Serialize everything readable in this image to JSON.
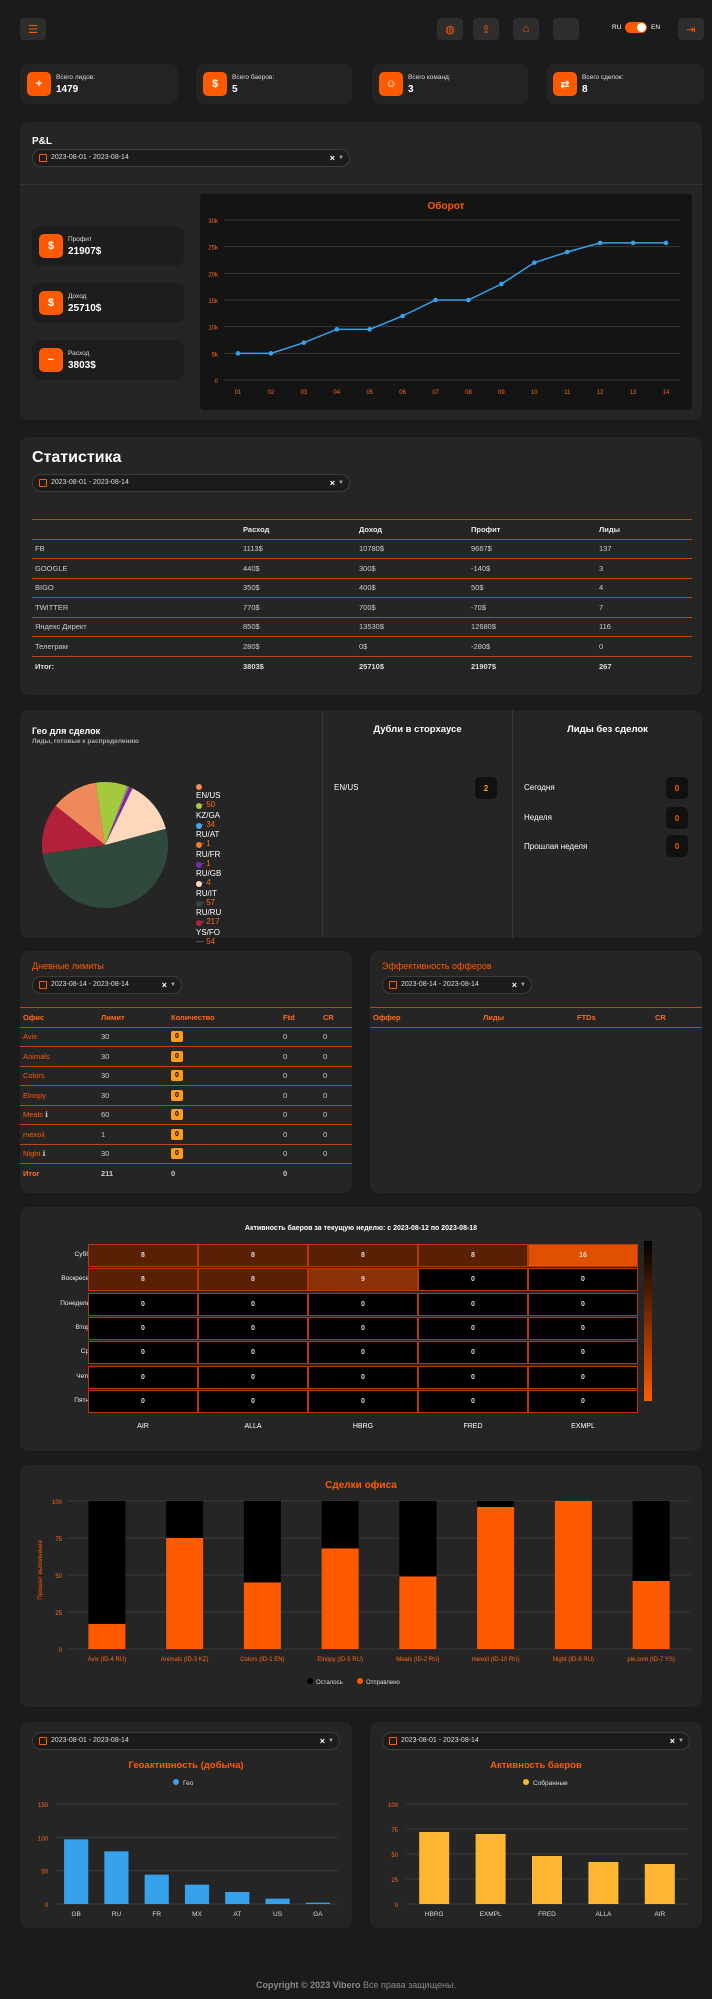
{
  "header": {
    "lang_ru": "RU",
    "lang_en": "EN"
  },
  "stats": [
    {
      "label": "Всего лидов:",
      "value": "1479"
    },
    {
      "label": "Всего баеров:",
      "value": "5"
    },
    {
      "label": "Всего команд:",
      "value": "3"
    },
    {
      "label": "Всего сделок:",
      "value": "8"
    }
  ],
  "pnl": {
    "title": "P&L",
    "date": "2023-08-01 - 2023-08-14",
    "cards": [
      {
        "label": "Профит",
        "value": "21907$"
      },
      {
        "label": "Доход",
        "value": "25710$"
      },
      {
        "label": "Расход",
        "value": "3803$"
      }
    ],
    "chart_title": "Оборот"
  },
  "statistics": {
    "title": "Статистика",
    "date": "2023-08-01 - 2023-08-14",
    "headers": [
      "",
      "Расход",
      "Доход",
      "Профит",
      "Лиды"
    ],
    "rows": [
      [
        "FB",
        "1113$",
        "10780$",
        "9667$",
        "137"
      ],
      [
        "GOOGLE",
        "440$",
        "300$",
        "-140$",
        "3"
      ],
      [
        "BIGO",
        "350$",
        "400$",
        "50$",
        "4"
      ],
      [
        "TWITTER",
        "770$",
        "700$",
        "-70$",
        "7"
      ],
      [
        "Яндекс Директ",
        "850$",
        "13530$",
        "12680$",
        "116"
      ],
      [
        "Телеграм",
        "280$",
        "0$",
        "-280$",
        "0"
      ]
    ],
    "total": [
      "Итог:",
      "3803$",
      "25710$",
      "21907$",
      "267"
    ]
  },
  "geo": {
    "title": "Гео для сделок",
    "subtitle": "Лиды, готовые к распределению"
  },
  "dupes": {
    "title": "Дубли в сторхаусе",
    "rows": [
      {
        "label": "EN/US",
        "value": "2"
      }
    ]
  },
  "nodeals": {
    "title": "Лиды без сделок",
    "rows": [
      {
        "label": "Сегодня",
        "value": "0"
      },
      {
        "label": "Неделя",
        "value": "0"
      },
      {
        "label": "Прошлая неделя",
        "value": "0"
      }
    ]
  },
  "limits": {
    "title": "Дневные лимиты",
    "date": "2023-08-14 - 2023-08-14",
    "headers": [
      "Офис",
      "Лимит",
      "Количество",
      "Ftd",
      "CR"
    ],
    "rows": [
      [
        "Avix",
        "30",
        "0",
        "0",
        "0"
      ],
      [
        "Animals",
        "30",
        "0",
        "0",
        "0"
      ],
      [
        "Colors",
        "30",
        "0",
        "0",
        "0"
      ],
      [
        "Elnopy",
        "30",
        "0",
        "0",
        "0"
      ],
      [
        "Meals",
        "60",
        "0",
        "0",
        "0"
      ],
      [
        "mexoil",
        "1",
        "0",
        "0",
        "0"
      ],
      [
        "Night",
        "30",
        "0",
        "0",
        "0"
      ]
    ],
    "total": [
      "Итог",
      "211",
      "0",
      "0",
      ""
    ]
  },
  "offers": {
    "title": "Эффективность офферов",
    "date": "2023-08-14 - 2023-08-14",
    "headers": [
      "Оффер",
      "Лиды",
      "FTDs",
      "CR"
    ]
  },
  "heatmap": {
    "title": "Активность баеров за текущую неделю: с 2023-08-12 по 2023-08-18"
  },
  "deals": {
    "title": "Сделки офиса"
  },
  "geoact": {
    "date": "2023-08-01 - 2023-08-14"
  },
  "buyersact": {
    "date": "2023-08-01 - 2023-08-14"
  },
  "footer": {
    "brand": "Copyright © 2023 Vibero",
    "rest": " Все права защищены."
  },
  "chart_data": [
    {
      "type": "line",
      "title": "Оборот",
      "x": [
        "01",
        "02",
        "03",
        "04",
        "05",
        "06",
        "07",
        "08",
        "09",
        "10",
        "11",
        "12",
        "13",
        "14"
      ],
      "values": [
        5000,
        5000,
        7000,
        9500,
        9500,
        12000,
        15000,
        15000,
        18000,
        22000,
        24000,
        25710,
        25710,
        25710
      ],
      "ylim": [
        0,
        30000
      ],
      "yticks": [
        "0",
        "5k",
        "10k",
        "15k",
        "20k",
        "25k",
        "30k"
      ],
      "color": "#36a2eb"
    },
    {
      "type": "pie",
      "title": "Гео для сделок",
      "slices": [
        {
          "label": "EN/US",
          "value": 50,
          "color": "#ee8a5a"
        },
        {
          "label": "KZ/GA",
          "value": 34,
          "color": "#a5c93c"
        },
        {
          "label": "RU/AT",
          "value": 1,
          "color": "#4aa3e8"
        },
        {
          "label": "RU/FR",
          "value": 1,
          "color": "#ee7a2a"
        },
        {
          "label": "RU/GB",
          "value": 4,
          "color": "#7a2aa8"
        },
        {
          "label": "RU/IT",
          "value": 57,
          "color": "#ffd8bc"
        },
        {
          "label": "RU/RU",
          "value": 217,
          "color": "#2f4a3c"
        },
        {
          "label": "YS/FO",
          "value": 54,
          "color": "#b3203c"
        }
      ]
    },
    {
      "type": "heatmap",
      "title": "Активность баеров за текущую неделю: с 2023-08-12 по 2023-08-18",
      "rows": [
        "Суббота",
        "Воскресенье",
        "Понедельник",
        "Вторник",
        "Среда",
        "Четверг",
        "Пятница"
      ],
      "cols": [
        "AIR",
        "ALLA",
        "HBRG",
        "FRED",
        "EXMPL"
      ],
      "values": [
        [
          8,
          8,
          8,
          8,
          16
        ],
        [
          8,
          8,
          9,
          0,
          0
        ],
        [
          0,
          0,
          0,
          0,
          0
        ],
        [
          0,
          0,
          0,
          0,
          0
        ],
        [
          0,
          0,
          0,
          0,
          0
        ],
        [
          0,
          0,
          0,
          0,
          0
        ],
        [
          0,
          0,
          0,
          0,
          0
        ]
      ]
    },
    {
      "type": "bar",
      "stacked": true,
      "title": "Сделки офиса",
      "ylabel": "Процент выполнения",
      "categories": [
        "Avix (ID-4 RU)",
        "Animals (ID-3 KZ)",
        "Colors (ID-1 EN)",
        "Elnopy (ID-5 RU)",
        "Meals (ID-2 RU)",
        "mexoil (ID-10 RU)",
        "Night (ID-8 RU)",
        "pie.com (ID-7 YS)"
      ],
      "series": [
        {
          "name": "Осталось",
          "color": "#000000",
          "values": [
            83,
            25,
            55,
            32,
            51,
            4,
            0,
            54
          ]
        },
        {
          "name": "Отправлено",
          "color": "#ff5a00",
          "values": [
            17,
            75,
            45,
            68,
            49,
            96,
            100,
            46
          ]
        }
      ],
      "ylim": [
        0,
        100
      ],
      "yticks": [
        "0",
        "25",
        "50",
        "75",
        "100"
      ]
    },
    {
      "type": "bar",
      "title": "Геоактивность (добыча)",
      "series": [
        {
          "name": "Гео",
          "color": "#36a2eb",
          "values": [
            97,
            79,
            44,
            29,
            18,
            8,
            2
          ]
        }
      ],
      "categories": [
        "GB",
        "RU",
        "FR",
        "MX",
        "AT",
        "US",
        "GA"
      ],
      "ylim": [
        0,
        150
      ],
      "yticks": [
        "0",
        "50",
        "100",
        "150"
      ]
    },
    {
      "type": "bar",
      "title": "Активность баеров",
      "series": [
        {
          "name": "Собранные",
          "color": "#ffb732",
          "values": [
            72,
            70,
            48,
            42,
            40
          ]
        }
      ],
      "categories": [
        "HBRG",
        "EXMPL",
        "FRED",
        "ALLA",
        "AIR"
      ],
      "ylim": [
        0,
        100
      ],
      "yticks": [
        "0",
        "25",
        "50",
        "75",
        "100"
      ]
    }
  ]
}
